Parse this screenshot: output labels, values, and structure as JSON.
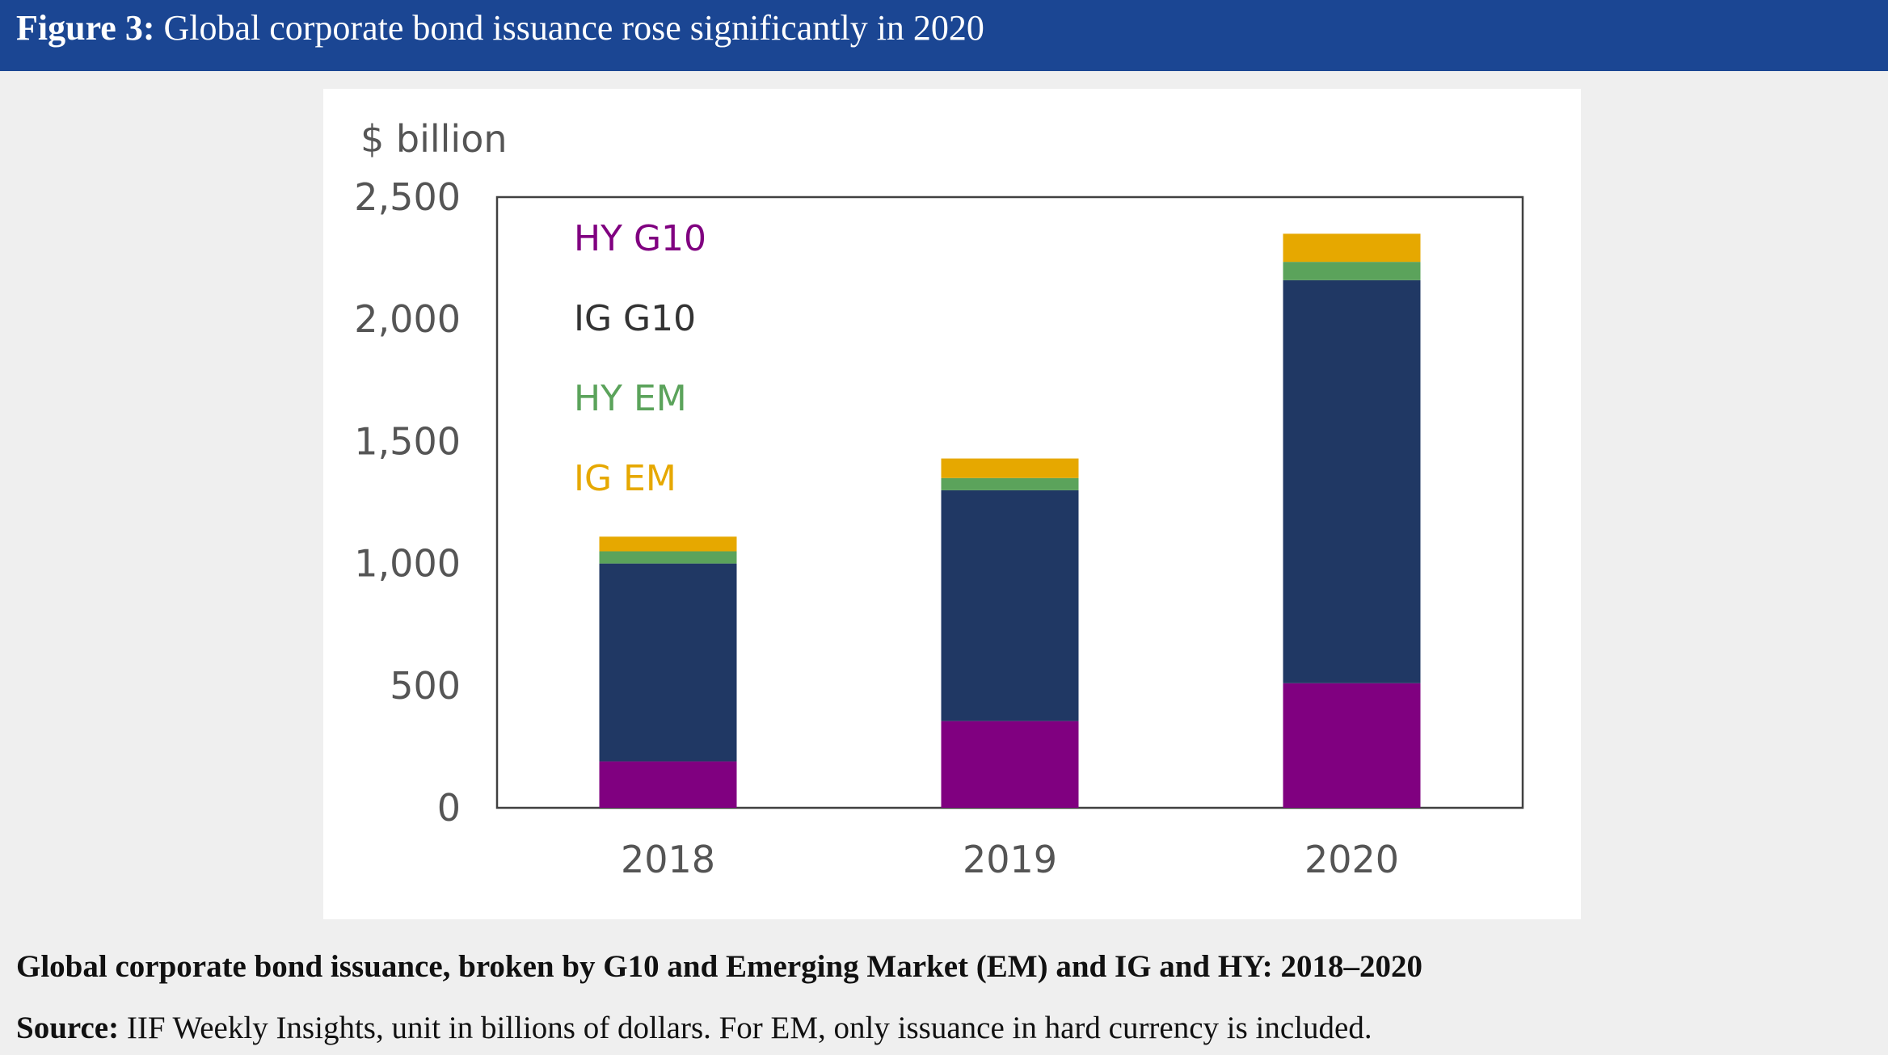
{
  "header": {
    "figure_label": "Figure 3:",
    "title": "Global corporate bond issuance rose significantly in 2020"
  },
  "caption": "Global corporate bond issuance, broken by G10 and Emerging Market (EM) and IG and HY: 2018–2020",
  "source": {
    "label": "Source:",
    "text": "IIF Weekly Insights, unit in billions of dollars. For EM, only issuance in hard currency is included."
  },
  "chart_data": {
    "type": "bar",
    "stacked": true,
    "title": "",
    "ylabel": "$ billion",
    "xlabel": "",
    "ylim": [
      0,
      2500
    ],
    "yticks": [
      0,
      500,
      1000,
      1500,
      2000,
      2500
    ],
    "ytick_labels": [
      "0",
      "500",
      "1,000",
      "1,500",
      "2,000",
      "2,500"
    ],
    "categories": [
      "2018",
      "2019",
      "2020"
    ],
    "series": [
      {
        "name": "HY G10",
        "color": "#800080",
        "values": [
          190,
          355,
          510
        ]
      },
      {
        "name": "IG G10",
        "color": "#203864",
        "values": [
          810,
          945,
          1650
        ]
      },
      {
        "name": "HY EM",
        "color": "#5ba35b",
        "values": [
          50,
          50,
          75
        ]
      },
      {
        "name": "IG EM",
        "color": "#e6a800",
        "values": [
          60,
          80,
          115
        ]
      }
    ],
    "legend": {
      "placement": "top-left inside plot",
      "order": [
        "HY G10",
        "IG G10",
        "HY EM",
        "IG EM"
      ]
    }
  }
}
